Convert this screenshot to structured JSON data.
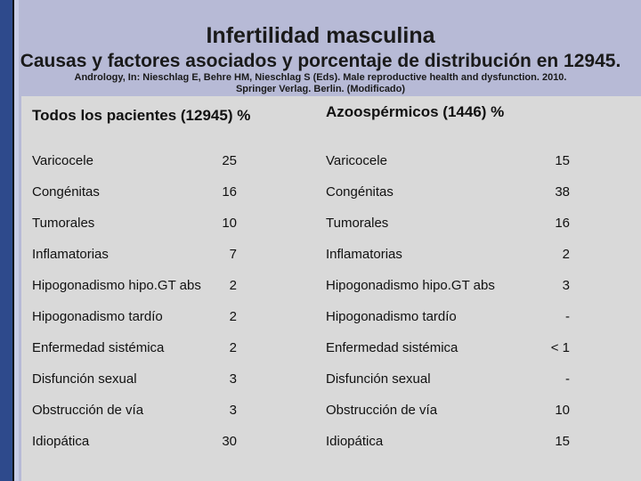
{
  "header": {
    "title": "Infertilidad masculina",
    "subtitle": "Causas y factores asociados y porcentaje de distribución en 12945.",
    "reference_line1": "Andrology, In: Nieschlag E, Behre HM, Nieschlag S (Eds). Male reproductive health and dysfunction. 2010.",
    "reference_line2": "Springer Verlag. Berlin. (Modificado)"
  },
  "table": {
    "left_heading": "Todos los pacientes (12945) %",
    "right_heading": "Azoospérmicos (1446) %",
    "rows": [
      {
        "label": "Varicocele",
        "all": "25",
        "azoo_label": "Varicocele",
        "azoo": "15"
      },
      {
        "label": "Congénitas",
        "all": "16",
        "azoo_label": "Congénitas",
        "azoo": "38"
      },
      {
        "label": "Tumorales",
        "all": "10",
        "azoo_label": "Tumorales",
        "azoo": "16"
      },
      {
        "label": "Inflamatorias",
        "all": "7",
        "azoo_label": "Inflamatorias",
        "azoo": "2"
      },
      {
        "label": "Hipogonadismo hipo.GT abs",
        "all": "2",
        "azoo_label": "Hipogonadismo hipo.GT abs",
        "azoo": "3"
      },
      {
        "label": "Hipogonadismo tardío",
        "all": "2",
        "azoo_label": "Hipogonadismo tardío",
        "azoo": "-"
      },
      {
        "label": "Enfermedad sistémica",
        "all": "2",
        "azoo_label": "Enfermedad sistémica",
        "azoo": "< 1"
      },
      {
        "label": "Disfunción sexual",
        "all": "3",
        "azoo_label": "Disfunción sexual",
        "azoo": "-"
      },
      {
        "label": "Obstrucción de vía",
        "all": "3",
        "azoo_label": "Obstrucción de vía",
        "azoo": "10"
      },
      {
        "label": "Idiopática",
        "all": "30",
        "azoo_label": "Idiopática",
        "azoo": "15"
      }
    ]
  }
}
